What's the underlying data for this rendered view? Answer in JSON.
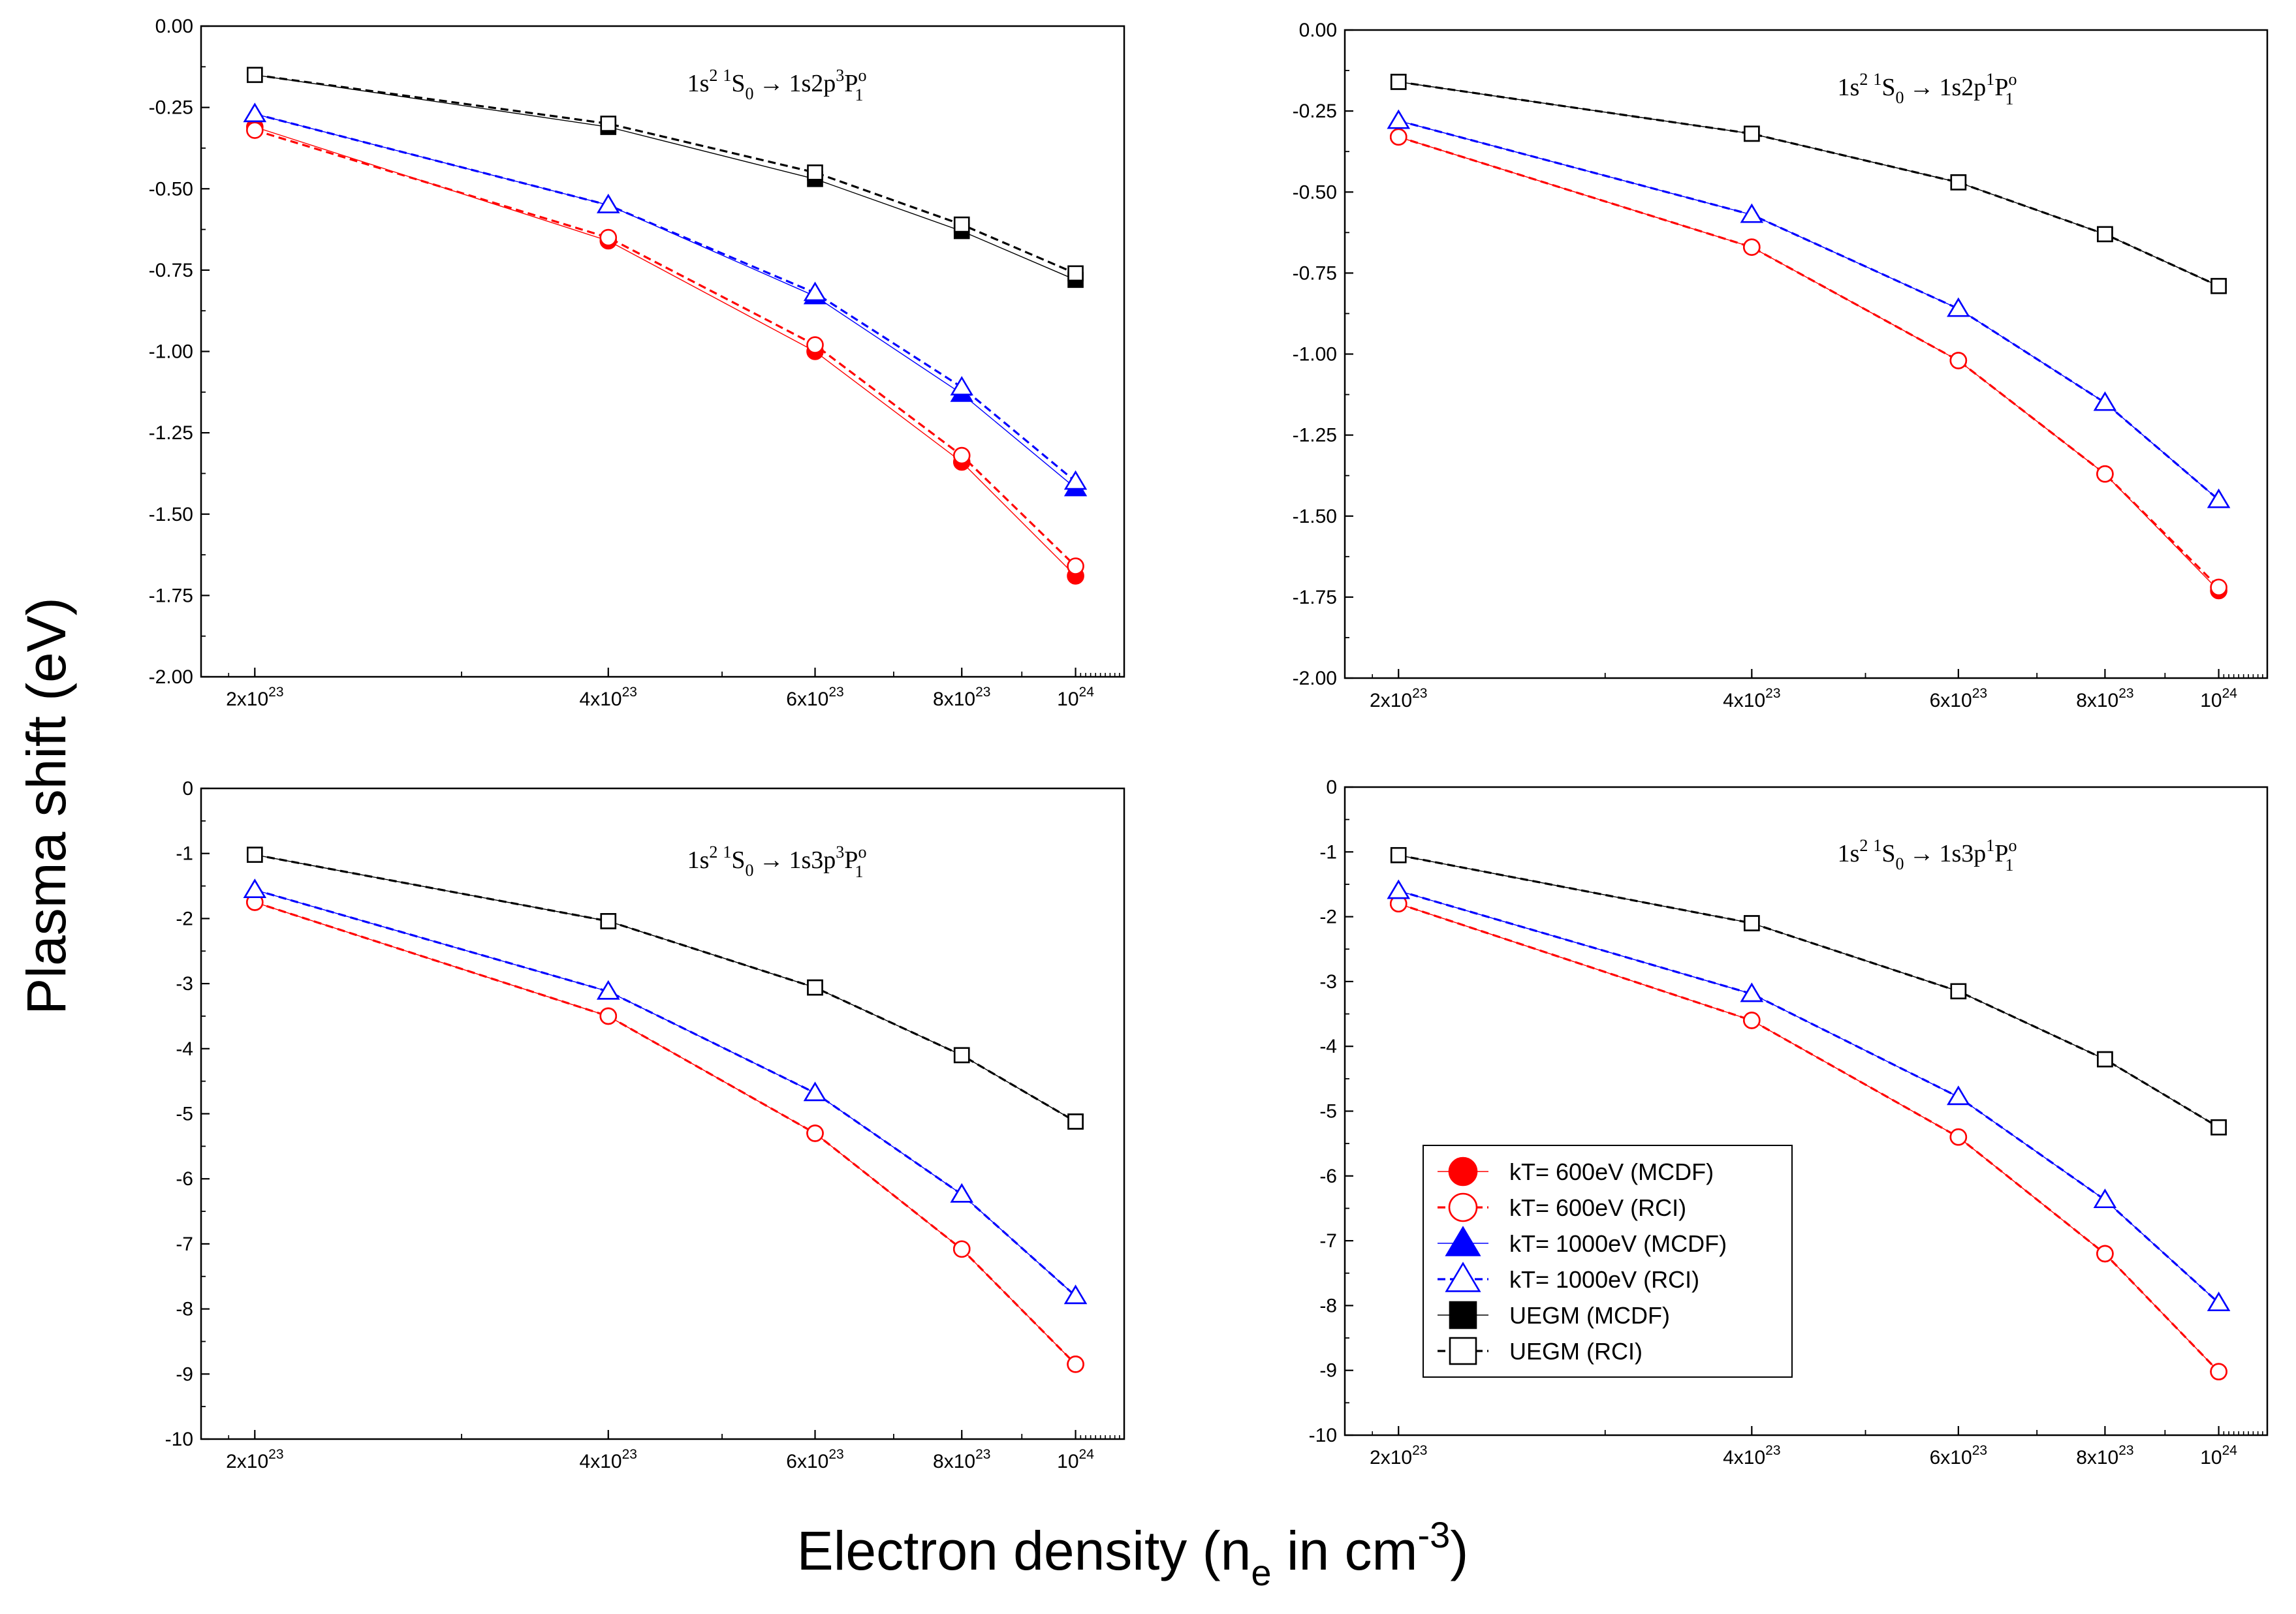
{
  "figure": {
    "ylabel": "Plasma shift (eV)",
    "xlabel": {
      "prefix": "Electron density (n",
      "subscript": "e",
      "middle": " in cm",
      "superscript": "-3",
      "suffix": ")"
    }
  },
  "legend": {
    "placement": "inside bottom-right panel, lower-left area",
    "entries": [
      {
        "label": "kT= 600eV (MCDF)",
        "color": "#ff0000",
        "marker": "filled-circle",
        "line": "solid"
      },
      {
        "label": "kT= 600eV (RCI)",
        "color": "#ff0000",
        "marker": "open-circle",
        "line": "dashed"
      },
      {
        "label": "kT= 1000eV (MCDF)",
        "color": "#0000ff",
        "marker": "filled-triangle",
        "line": "solid"
      },
      {
        "label": "kT= 1000eV (RCI)",
        "color": "#0000ff",
        "marker": "open-triangle",
        "line": "dashed"
      },
      {
        "label": "UEGM (MCDF)",
        "color": "#000000",
        "marker": "filled-square",
        "line": "solid"
      },
      {
        "label": "UEGM (RCI)",
        "color": "#000000",
        "marker": "open-square",
        "line": "dashed"
      }
    ]
  },
  "chart_data": [
    {
      "type": "line",
      "position": "top-left",
      "transition": {
        "base": "1s",
        "sup1": "2",
        "sup2": "1",
        "S": "S",
        "sub1": "0",
        "arrow": "→",
        "upper": "1s2p",
        "sup3": "3",
        "P": "P",
        "supo": "o",
        "sub2": "1"
      },
      "x": [
        2e+23,
        4e+23,
        6e+23,
        8e+23,
        1e+24
      ],
      "x_scale": "log",
      "xlim": [
        1.8e+23,
        1.1e+24
      ],
      "ylim": [
        -2.0,
        0.0
      ],
      "yticks": [
        0.0,
        -0.25,
        -0.5,
        -0.75,
        -1.0,
        -1.25,
        -1.5,
        -1.75,
        -2.0
      ],
      "ytick_labels": [
        "0.00",
        "-0.25",
        "-0.50",
        "-0.75",
        "-1.00",
        "-1.25",
        "-1.50",
        "-1.75",
        "-2.00"
      ],
      "xtick_labels": [
        {
          "mantissa": "2x10",
          "exp": "23"
        },
        {
          "mantissa": "4x10",
          "exp": "23"
        },
        {
          "mantissa": "6x10",
          "exp": "23"
        },
        {
          "mantissa": "8x10",
          "exp": "23"
        },
        {
          "mantissa": "10",
          "exp": "24"
        }
      ],
      "series": [
        {
          "name": "kT= 600eV (MCDF)",
          "values": [
            -0.31,
            -0.66,
            -1.0,
            -1.34,
            -1.69
          ]
        },
        {
          "name": "kT= 600eV (RCI)",
          "values": [
            -0.32,
            -0.65,
            -0.98,
            -1.32,
            -1.66
          ]
        },
        {
          "name": "kT= 1000eV (MCDF)",
          "values": [
            -0.27,
            -0.55,
            -0.83,
            -1.13,
            -1.42
          ]
        },
        {
          "name": "kT= 1000eV (RCI)",
          "values": [
            -0.27,
            -0.55,
            -0.82,
            -1.11,
            -1.4
          ]
        },
        {
          "name": "UEGM (MCDF)",
          "values": [
            -0.15,
            -0.31,
            -0.47,
            -0.63,
            -0.78
          ]
        },
        {
          "name": "UEGM (RCI)",
          "values": [
            -0.15,
            -0.3,
            -0.45,
            -0.61,
            -0.76
          ]
        }
      ]
    },
    {
      "type": "line",
      "position": "top-right",
      "transition": {
        "base": "1s",
        "sup1": "2",
        "sup2": "1",
        "S": "S",
        "sub1": "0",
        "arrow": "→",
        "upper": "1s2p",
        "sup3": "1",
        "P": "P",
        "supo": "o",
        "sub2": "1"
      },
      "x": [
        2e+23,
        4e+23,
        6e+23,
        8e+23,
        1e+24
      ],
      "x_scale": "log",
      "xlim": [
        1.8e+23,
        1.1e+24
      ],
      "ylim": [
        -2.0,
        0.0
      ],
      "yticks": [
        0.0,
        -0.25,
        -0.5,
        -0.75,
        -1.0,
        -1.25,
        -1.5,
        -1.75,
        -2.0
      ],
      "ytick_labels": [
        "0.00",
        "-0.25",
        "-0.50",
        "-0.75",
        "-1.00",
        "-1.25",
        "-1.50",
        "-1.75",
        "-2.00"
      ],
      "xtick_labels": [
        {
          "mantissa": "2x10",
          "exp": "23"
        },
        {
          "mantissa": "4x10",
          "exp": "23"
        },
        {
          "mantissa": "6x10",
          "exp": "23"
        },
        {
          "mantissa": "8x10",
          "exp": "23"
        },
        {
          "mantissa": "10",
          "exp": "24"
        }
      ],
      "series": [
        {
          "name": "kT= 600eV (MCDF)",
          "values": [
            -0.33,
            -0.67,
            -1.02,
            -1.37,
            -1.73
          ]
        },
        {
          "name": "kT= 600eV (RCI)",
          "values": [
            -0.33,
            -0.67,
            -1.02,
            -1.37,
            -1.72
          ]
        },
        {
          "name": "kT= 1000eV (MCDF)",
          "values": [
            -0.28,
            -0.57,
            -0.86,
            -1.15,
            -1.45
          ]
        },
        {
          "name": "kT= 1000eV (RCI)",
          "values": [
            -0.28,
            -0.57,
            -0.86,
            -1.15,
            -1.45
          ]
        },
        {
          "name": "UEGM (MCDF)",
          "values": [
            -0.16,
            -0.32,
            -0.47,
            -0.63,
            -0.79
          ]
        },
        {
          "name": "UEGM (RCI)",
          "values": [
            -0.16,
            -0.32,
            -0.47,
            -0.63,
            -0.79
          ]
        }
      ]
    },
    {
      "type": "line",
      "position": "bottom-left",
      "transition": {
        "base": "1s",
        "sup1": "2",
        "sup2": "1",
        "S": "S",
        "sub1": "0",
        "arrow": "→",
        "upper": "1s3p",
        "sup3": "3",
        "P": "P",
        "supo": "o",
        "sub2": "1"
      },
      "x": [
        2e+23,
        4e+23,
        6e+23,
        8e+23,
        1e+24
      ],
      "x_scale": "log",
      "xlim": [
        1.8e+23,
        1.1e+24
      ],
      "ylim": [
        -10,
        0
      ],
      "yticks": [
        0,
        -1,
        -2,
        -3,
        -4,
        -5,
        -6,
        -7,
        -8,
        -9,
        -10
      ],
      "ytick_labels": [
        "0",
        "-1",
        "-2",
        "-3",
        "-4",
        "-5",
        "-6",
        "-7",
        "-8",
        "-9",
        "-10"
      ],
      "xtick_labels": [
        {
          "mantissa": "2x10",
          "exp": "23"
        },
        {
          "mantissa": "4x10",
          "exp": "23"
        },
        {
          "mantissa": "6x10",
          "exp": "23"
        },
        {
          "mantissa": "8x10",
          "exp": "23"
        },
        {
          "mantissa": "10",
          "exp": "24"
        }
      ],
      "series": [
        {
          "name": "kT= 600eV (MCDF)",
          "values": [
            -1.75,
            -3.5,
            -5.3,
            -7.08,
            -8.85
          ]
        },
        {
          "name": "kT= 600eV (RCI)",
          "values": [
            -1.75,
            -3.5,
            -5.3,
            -7.08,
            -8.85
          ]
        },
        {
          "name": "kT= 1000eV (MCDF)",
          "values": [
            -1.56,
            -3.12,
            -4.68,
            -6.24,
            -7.8
          ]
        },
        {
          "name": "kT= 1000eV (RCI)",
          "values": [
            -1.56,
            -3.12,
            -4.68,
            -6.24,
            -7.8
          ]
        },
        {
          "name": "UEGM (MCDF)",
          "values": [
            -1.02,
            -2.04,
            -3.06,
            -4.1,
            -5.12
          ]
        },
        {
          "name": "UEGM (RCI)",
          "values": [
            -1.02,
            -2.04,
            -3.06,
            -4.1,
            -5.12
          ]
        }
      ]
    },
    {
      "type": "line",
      "position": "bottom-right",
      "transition": {
        "base": "1s",
        "sup1": "2",
        "sup2": "1",
        "S": "S",
        "sub1": "0",
        "arrow": "→",
        "upper": "1s3p",
        "sup3": "1",
        "P": "P",
        "supo": "o",
        "sub2": "1"
      },
      "x": [
        2e+23,
        4e+23,
        6e+23,
        8e+23,
        1e+24
      ],
      "x_scale": "log",
      "xlim": [
        1.8e+23,
        1.1e+24
      ],
      "ylim": [
        -10,
        0
      ],
      "yticks": [
        0,
        -1,
        -2,
        -3,
        -4,
        -5,
        -6,
        -7,
        -8,
        -9,
        -10
      ],
      "ytick_labels": [
        "0",
        "-1",
        "-2",
        "-3",
        "-4",
        "-5",
        "-6",
        "-7",
        "-8",
        "-9",
        "-10"
      ],
      "xtick_labels": [
        {
          "mantissa": "2x10",
          "exp": "23"
        },
        {
          "mantissa": "4x10",
          "exp": "23"
        },
        {
          "mantissa": "6x10",
          "exp": "23"
        },
        {
          "mantissa": "8x10",
          "exp": "23"
        },
        {
          "mantissa": "10",
          "exp": "24"
        }
      ],
      "series": [
        {
          "name": "kT= 600eV (MCDF)",
          "values": [
            -1.8,
            -3.6,
            -5.4,
            -7.2,
            -9.02
          ]
        },
        {
          "name": "kT= 600eV (RCI)",
          "values": [
            -1.8,
            -3.6,
            -5.4,
            -7.2,
            -9.02
          ]
        },
        {
          "name": "kT= 1000eV (MCDF)",
          "values": [
            -1.6,
            -3.19,
            -4.78,
            -6.37,
            -7.96
          ]
        },
        {
          "name": "kT= 1000eV (RCI)",
          "values": [
            -1.6,
            -3.19,
            -4.78,
            -6.37,
            -7.96
          ]
        },
        {
          "name": "UEGM (MCDF)",
          "values": [
            -1.05,
            -2.1,
            -3.15,
            -4.2,
            -5.25
          ]
        },
        {
          "name": "UEGM (RCI)",
          "values": [
            -1.05,
            -2.1,
            -3.15,
            -4.2,
            -5.25
          ]
        }
      ]
    }
  ]
}
